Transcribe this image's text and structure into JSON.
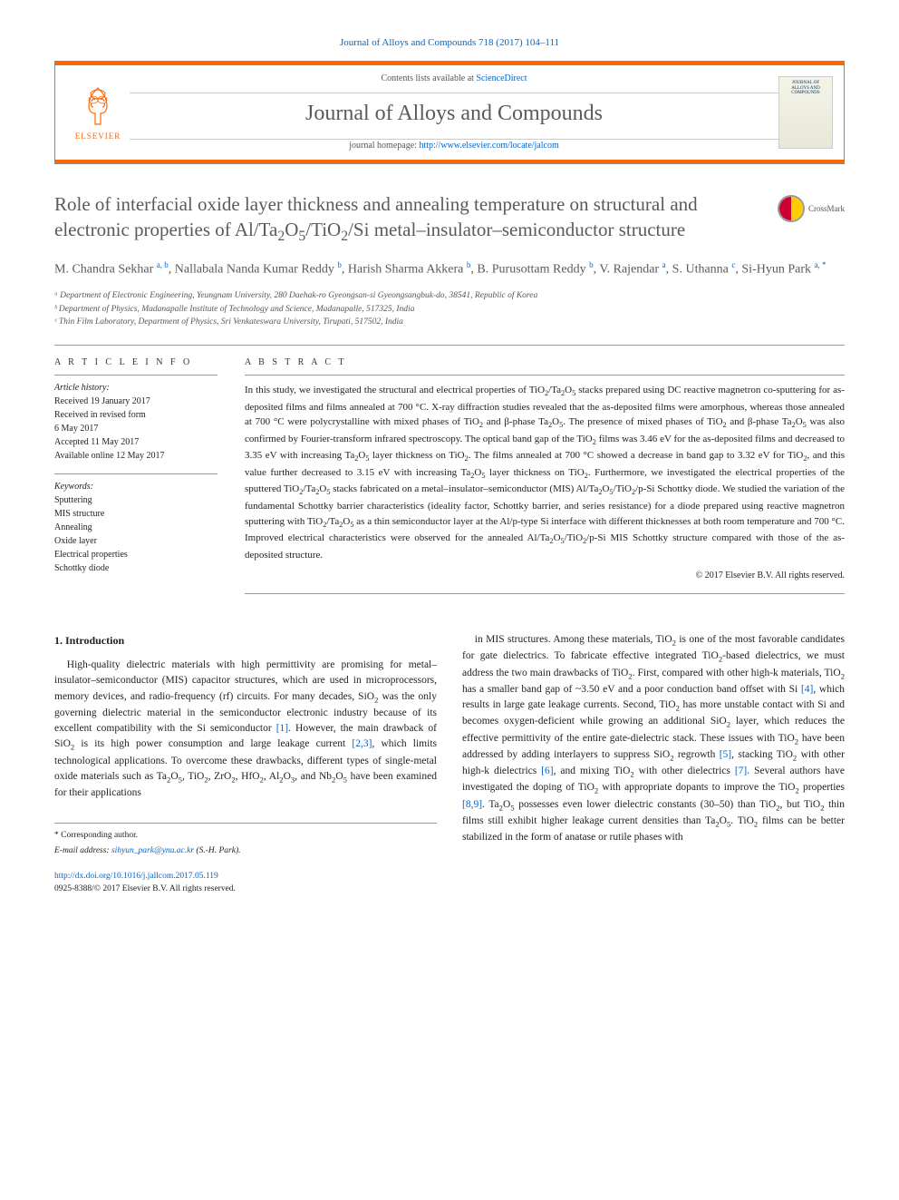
{
  "journal_ref": "Journal of Alloys and Compounds 718 (2017) 104–111",
  "header": {
    "contents_prefix": "Contents lists available at ",
    "contents_link": "ScienceDirect",
    "journal_name": "Journal of Alloys and Compounds",
    "homepage_prefix": "journal homepage: ",
    "homepage_link": "http://www.elsevier.com/locate/jalcom",
    "publisher": "ELSEVIER",
    "cover_label": "JOURNAL OF ALLOYS AND COMPOUNDS"
  },
  "crossmark": "CrossMark",
  "title": "Role of interfacial oxide layer thickness and annealing temperature on structural and electronic properties of Al/Ta₂O₅/TiO₂/Si metal–insulator–semiconductor structure",
  "authors_html": "M. Chandra Sekhar <sup>a, b</sup>, Nallabala Nanda Kumar Reddy <sup>b</sup>, Harish Sharma Akkera <sup>b</sup>, B. Purusottam Reddy <sup>b</sup>, V. Rajendar <sup>a</sup>, S. Uthanna <sup>c</sup>, Si-Hyun Park <sup>a, *</sup>",
  "affiliations": [
    "ᵃ Department of Electronic Engineering, Yeungnam University, 280 Daehak-ro Gyeongsan-si Gyeongsangbuk-do, 38541, Republic of Korea",
    "ᵇ Department of Physics, Madanapalle Institute of Technology and Science, Madanapalle, 517325, India",
    "ᶜ Thin Film Laboratory, Department of Physics, Sri Venkateswara University, Tirupati, 517502, India"
  ],
  "article_info": {
    "heading": "A R T I C L E   I N F O",
    "history_label": "Article history:",
    "history": [
      "Received 19 January 2017",
      "Received in revised form",
      "6 May 2017",
      "Accepted 11 May 2017",
      "Available online 12 May 2017"
    ],
    "keywords_label": "Keywords:",
    "keywords": [
      "Sputtering",
      "MIS structure",
      "Annealing",
      "Oxide layer",
      "Electrical properties",
      "Schottky diode"
    ]
  },
  "abstract": {
    "heading": "A B S T R A C T",
    "text": "In this study, we investigated the structural and electrical properties of TiO₂/Ta₂O₅ stacks prepared using DC reactive magnetron co-sputtering for as-deposited films and films annealed at 700 °C. X-ray diffraction studies revealed that the as-deposited films were amorphous, whereas those annealed at 700 °C were polycrystalline with mixed phases of TiO₂ and β-phase Ta₂O₅. The presence of mixed phases of TiO₂ and β-phase Ta₂O₅ was also confirmed by Fourier-transform infrared spectroscopy. The optical band gap of the TiO₂ films was 3.46 eV for the as-deposited films and decreased to 3.35 eV with increasing Ta₂O₅ layer thickness on TiO₂. The films annealed at 700 °C showed a decrease in band gap to 3.32 eV for TiO₂, and this value further decreased to 3.15 eV with increasing Ta₂O₅ layer thickness on TiO₂. Furthermore, we investigated the electrical properties of the sputtered TiO₂/Ta₂O₅ stacks fabricated on a metal–insulator–semiconductor (MIS) Al/Ta₂O₅/TiO₂/p-Si Schottky diode. We studied the variation of the fundamental Schottky barrier characteristics (ideality factor, Schottky barrier, and series resistance) for a diode prepared using reactive magnetron sputtering with TiO₂/Ta₂O₅ as a thin semiconductor layer at the Al/p-type Si interface with different thicknesses at both room temperature and 700 °C. Improved electrical characteristics were observed for the annealed Al/Ta₂O₅/TiO₂/p-Si MIS Schottky structure compared with those of the as-deposited structure.",
    "copyright": "© 2017 Elsevier B.V. All rights reserved."
  },
  "body": {
    "section_heading": "1. Introduction",
    "col1_p1": "High-quality dielectric materials with high permittivity are promising for metal–insulator–semiconductor (MIS) capacitor structures, which are used in microprocessors, memory devices, and radio-frequency (rf) circuits. For many decades, SiO₂ was the only governing dielectric material in the semiconductor electronic industry because of its excellent compatibility with the Si semiconductor [1]. However, the main drawback of SiO₂ is its high power consumption and large leakage current [2,3], which limits technological applications. To overcome these drawbacks, different types of single-metal oxide materials such as Ta₂O₅, TiO₂, ZrO₂, HfO₂, Al₂O₃, and Nb₂O₅ have been examined for their applications",
    "col2_p1": "in MIS structures. Among these materials, TiO₂ is one of the most favorable candidates for gate dielectrics. To fabricate effective integrated TiO₂-based dielectrics, we must address the two main drawbacks of TiO₂. First, compared with other high-k materials, TiO₂ has a smaller band gap of ~3.50 eV and a poor conduction band offset with Si [4], which results in large gate leakage currents. Second, TiO₂ has more unstable contact with Si and becomes oxygen-deficient while growing an additional SiO₂ layer, which reduces the effective permittivity of the entire gate-dielectric stack. These issues with TiO₂ have been addressed by adding interlayers to suppress SiO₂ regrowth [5], stacking TiO₂ with other high-k dielectrics [6], and mixing TiO₂ with other dielectrics [7]. Several authors have investigated the doping of TiO₂ with appropriate dopants to improve the TiO₂ properties [8,9]. Ta₂O₅ possesses even lower dielectric constants (30–50) than TiO₂, but TiO₂ thin films still exhibit higher leakage current densities than Ta₂O₅. TiO₂ films can be better stabilized in the form of anatase or rutile phases with"
  },
  "footer": {
    "corr": "* Corresponding author.",
    "email_label": "E-mail address: ",
    "email": "sihyun_park@ynu.ac.kr",
    "email_suffix": " (S.-H. Park).",
    "doi": "http://dx.doi.org/10.1016/j.jallcom.2017.05.119",
    "issn_line": "0925-8388/© 2017 Elsevier B.V. All rights reserved."
  },
  "colors": {
    "link": "#0066cc",
    "accent": "#ff6600",
    "heading": "#5a5a5a"
  }
}
